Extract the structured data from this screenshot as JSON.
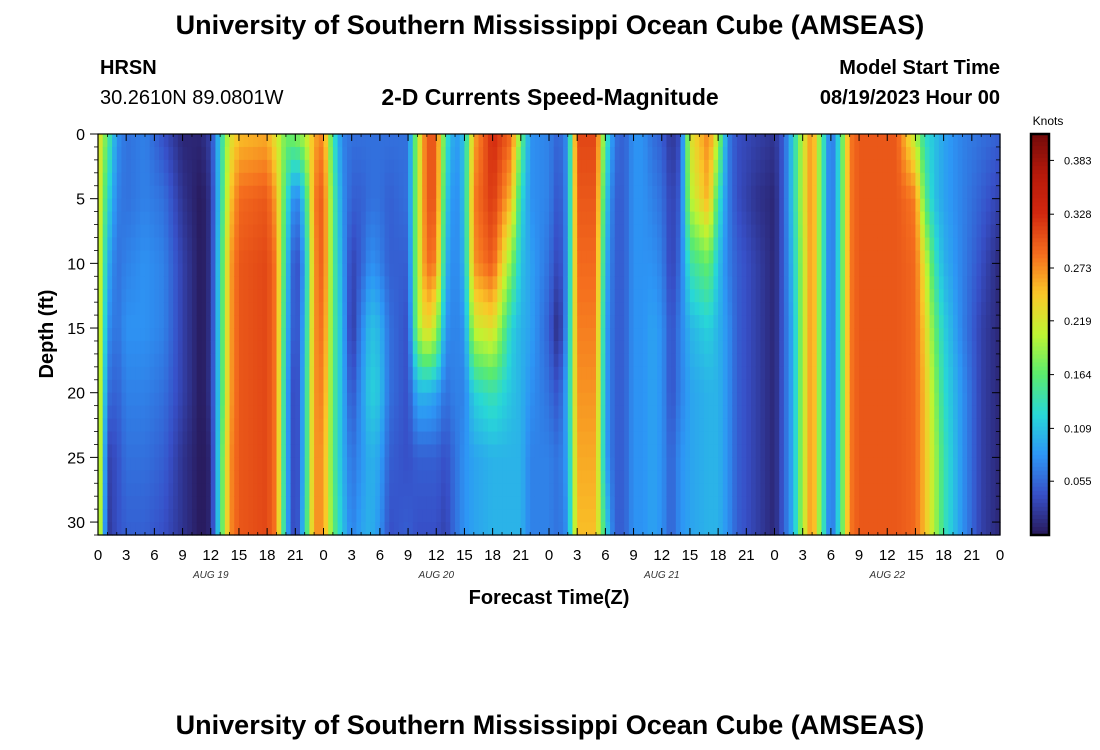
{
  "header": {
    "title": "University of Southern Mississippi Ocean Cube (AMSEAS)",
    "station_name": "HRSN",
    "station_coords": "30.2610N  89.0801W",
    "plot_title": "2-D Currents Speed-Magnitude",
    "model_start_label": "Model Start Time",
    "model_start_value": "08/19/2023 Hour 00"
  },
  "footer": {
    "title": "University of Southern Mississippi Ocean Cube (AMSEAS)"
  },
  "chart_data": {
    "type": "heatmap",
    "title": "2-D Currents Speed-Magnitude",
    "xlabel": "Forecast Time(Z)",
    "ylabel": "Depth (ft)",
    "x_range_hours": [
      0,
      96
    ],
    "x_ticks_hours": [
      0,
      3,
      6,
      9,
      12,
      15,
      18,
      21,
      24,
      27,
      30,
      33,
      36,
      39,
      42,
      45,
      48,
      51,
      54,
      57,
      60,
      63,
      66,
      69,
      72,
      75,
      78,
      81,
      84,
      87,
      90,
      93,
      96
    ],
    "x_tick_labels": [
      "0",
      "3",
      "6",
      "9",
      "12",
      "15",
      "18",
      "21",
      "0",
      "3",
      "6",
      "9",
      "12",
      "15",
      "18",
      "21",
      "0",
      "3",
      "6",
      "9",
      "12",
      "15",
      "18",
      "21",
      "0",
      "3",
      "6",
      "9",
      "12",
      "15",
      "18",
      "21",
      "0"
    ],
    "date_labels": [
      {
        "label": "AUG 19",
        "hour": 12
      },
      {
        "label": "AUG 20",
        "hour": 36
      },
      {
        "label": "AUG 21",
        "hour": 60
      },
      {
        "label": "AUG 22",
        "hour": 84
      }
    ],
    "y_range_ft": [
      0,
      31
    ],
    "y_ticks": [
      0,
      5,
      10,
      15,
      20,
      25,
      30
    ],
    "y_tick_labels": [
      "0",
      "5",
      "10",
      "15",
      "20",
      "25",
      "30"
    ],
    "colorbar": {
      "unit": "Knots",
      "min": 0,
      "max": 0.41,
      "tick_values": [
        0.383,
        0.328,
        0.273,
        0.219,
        0.164,
        0.109,
        0.055
      ],
      "tick_labels": [
        "0.383",
        "0.328",
        "0.273",
        "0.219",
        "0.164",
        "0.109",
        "0.055"
      ]
    },
    "profile_note": "speed (knots) by forecast hour; surface_to_bottom gives approximate speed at depths 0, 5, 10, 15, 20, 25, 31 ft",
    "profiles": [
      {
        "hour": 0,
        "surface_to_bottom": [
          0.24,
          0.24,
          0.24,
          0.25,
          0.25,
          0.26,
          0.26
        ]
      },
      {
        "hour": 1,
        "surface_to_bottom": [
          0.16,
          0.13,
          0.1,
          0.08,
          0.06,
          0.03,
          0.02
        ]
      },
      {
        "hour": 2,
        "surface_to_bottom": [
          0.08,
          0.07,
          0.06,
          0.06,
          0.05,
          0.04,
          0.04
        ]
      },
      {
        "hour": 3,
        "surface_to_bottom": [
          0.06,
          0.06,
          0.07,
          0.08,
          0.07,
          0.06,
          0.05
        ]
      },
      {
        "hour": 5,
        "surface_to_bottom": [
          0.07,
          0.07,
          0.08,
          0.08,
          0.07,
          0.06,
          0.05
        ]
      },
      {
        "hour": 7,
        "surface_to_bottom": [
          0.04,
          0.06,
          0.07,
          0.07,
          0.06,
          0.05,
          0.04
        ]
      },
      {
        "hour": 9,
        "surface_to_bottom": [
          0.01,
          0.02,
          0.03,
          0.03,
          0.03,
          0.02,
          0.02
        ]
      },
      {
        "hour": 11,
        "surface_to_bottom": [
          0.01,
          0.0,
          0.0,
          0.0,
          0.0,
          0.0,
          0.0
        ]
      },
      {
        "hour": 12,
        "surface_to_bottom": [
          0.03,
          0.02,
          0.02,
          0.02,
          0.02,
          0.01,
          0.01
        ]
      },
      {
        "hour": 13,
        "surface_to_bottom": [
          0.12,
          0.12,
          0.13,
          0.13,
          0.13,
          0.14,
          0.14
        ]
      },
      {
        "hour": 14,
        "surface_to_bottom": [
          0.22,
          0.24,
          0.26,
          0.26,
          0.26,
          0.27,
          0.27
        ]
      },
      {
        "hour": 15,
        "surface_to_bottom": [
          0.25,
          0.29,
          0.3,
          0.3,
          0.3,
          0.3,
          0.3
        ]
      },
      {
        "hour": 18,
        "surface_to_bottom": [
          0.26,
          0.3,
          0.31,
          0.31,
          0.31,
          0.31,
          0.31
        ]
      },
      {
        "hour": 19,
        "surface_to_bottom": [
          0.22,
          0.26,
          0.28,
          0.28,
          0.28,
          0.28,
          0.28
        ]
      },
      {
        "hour": 20,
        "surface_to_bottom": [
          0.17,
          0.14,
          0.12,
          0.11,
          0.1,
          0.1,
          0.1
        ]
      },
      {
        "hour": 21,
        "surface_to_bottom": [
          0.18,
          0.06,
          0.03,
          0.03,
          0.02,
          0.02,
          0.02
        ]
      },
      {
        "hour": 22,
        "surface_to_bottom": [
          0.2,
          0.12,
          0.09,
          0.1,
          0.11,
          0.11,
          0.12
        ]
      },
      {
        "hour": 23,
        "surface_to_bottom": [
          0.26,
          0.28,
          0.27,
          0.27,
          0.27,
          0.27,
          0.27
        ]
      },
      {
        "hour": 24,
        "surface_to_bottom": [
          0.28,
          0.3,
          0.3,
          0.29,
          0.28,
          0.27,
          0.27
        ]
      },
      {
        "hour": 25,
        "surface_to_bottom": [
          0.14,
          0.16,
          0.16,
          0.16,
          0.16,
          0.16,
          0.17
        ]
      },
      {
        "hour": 26,
        "surface_to_bottom": [
          0.07,
          0.08,
          0.09,
          0.1,
          0.1,
          0.1,
          0.11
        ]
      },
      {
        "hour": 27,
        "surface_to_bottom": [
          0.06,
          0.05,
          0.03,
          0.02,
          0.04,
          0.06,
          0.07
        ]
      },
      {
        "hour": 28,
        "surface_to_bottom": [
          0.06,
          0.05,
          0.05,
          0.07,
          0.08,
          0.08,
          0.09
        ]
      },
      {
        "hour": 29,
        "surface_to_bottom": [
          0.06,
          0.06,
          0.08,
          0.11,
          0.12,
          0.1,
          0.1
        ]
      },
      {
        "hour": 30,
        "surface_to_bottom": [
          0.06,
          0.06,
          0.07,
          0.1,
          0.11,
          0.09,
          0.08
        ]
      },
      {
        "hour": 31,
        "surface_to_bottom": [
          0.06,
          0.05,
          0.05,
          0.06,
          0.06,
          0.05,
          0.04
        ]
      },
      {
        "hour": 33,
        "surface_to_bottom": [
          0.06,
          0.06,
          0.05,
          0.04,
          0.04,
          0.04,
          0.05
        ]
      },
      {
        "hour": 34,
        "surface_to_bottom": [
          0.2,
          0.2,
          0.2,
          0.19,
          0.1,
          0.05,
          0.04
        ]
      },
      {
        "hour": 35,
        "surface_to_bottom": [
          0.3,
          0.3,
          0.29,
          0.24,
          0.1,
          0.05,
          0.04
        ]
      },
      {
        "hour": 36,
        "surface_to_bottom": [
          0.3,
          0.3,
          0.28,
          0.2,
          0.09,
          0.05,
          0.04
        ]
      },
      {
        "hour": 37,
        "surface_to_bottom": [
          0.14,
          0.12,
          0.1,
          0.08,
          0.06,
          0.04,
          0.03
        ]
      },
      {
        "hour": 38,
        "surface_to_bottom": [
          0.08,
          0.07,
          0.07,
          0.07,
          0.07,
          0.06,
          0.06
        ]
      },
      {
        "hour": 39,
        "surface_to_bottom": [
          0.11,
          0.11,
          0.1,
          0.08,
          0.07,
          0.08,
          0.08
        ]
      },
      {
        "hour": 40,
        "surface_to_bottom": [
          0.26,
          0.28,
          0.27,
          0.21,
          0.12,
          0.09,
          0.09
        ]
      },
      {
        "hour": 42,
        "surface_to_bottom": [
          0.33,
          0.32,
          0.3,
          0.23,
          0.14,
          0.1,
          0.1
        ]
      },
      {
        "hour": 44,
        "surface_to_bottom": [
          0.29,
          0.25,
          0.18,
          0.12,
          0.11,
          0.1,
          0.1
        ]
      },
      {
        "hour": 45,
        "surface_to_bottom": [
          0.17,
          0.13,
          0.11,
          0.1,
          0.1,
          0.1,
          0.1
        ]
      },
      {
        "hour": 46,
        "surface_to_bottom": [
          0.08,
          0.08,
          0.09,
          0.09,
          0.08,
          0.07,
          0.07
        ]
      },
      {
        "hour": 48,
        "surface_to_bottom": [
          0.07,
          0.07,
          0.06,
          0.05,
          0.06,
          0.07,
          0.07
        ]
      },
      {
        "hour": 49,
        "surface_to_bottom": [
          0.05,
          0.04,
          0.03,
          0.01,
          0.04,
          0.06,
          0.06
        ]
      },
      {
        "hour": 50,
        "surface_to_bottom": [
          0.08,
          0.08,
          0.08,
          0.09,
          0.1,
          0.09,
          0.08
        ]
      },
      {
        "hour": 51,
        "surface_to_bottom": [
          0.31,
          0.3,
          0.29,
          0.28,
          0.27,
          0.26,
          0.25
        ]
      },
      {
        "hour": 53,
        "surface_to_bottom": [
          0.31,
          0.3,
          0.29,
          0.28,
          0.27,
          0.26,
          0.25
        ]
      },
      {
        "hour": 54,
        "surface_to_bottom": [
          0.15,
          0.12,
          0.1,
          0.09,
          0.09,
          0.09,
          0.13
        ]
      },
      {
        "hour": 55,
        "surface_to_bottom": [
          0.06,
          0.05,
          0.05,
          0.05,
          0.05,
          0.05,
          0.05
        ]
      },
      {
        "hour": 56,
        "surface_to_bottom": [
          0.05,
          0.05,
          0.05,
          0.05,
          0.05,
          0.05,
          0.05
        ]
      },
      {
        "hour": 57,
        "surface_to_bottom": [
          0.08,
          0.08,
          0.08,
          0.08,
          0.08,
          0.08,
          0.08
        ]
      },
      {
        "hour": 58,
        "surface_to_bottom": [
          0.08,
          0.08,
          0.08,
          0.08,
          0.08,
          0.08,
          0.08
        ]
      },
      {
        "hour": 59,
        "surface_to_bottom": [
          0.06,
          0.07,
          0.08,
          0.09,
          0.09,
          0.09,
          0.09
        ]
      },
      {
        "hour": 60,
        "surface_to_bottom": [
          0.05,
          0.06,
          0.07,
          0.08,
          0.08,
          0.08,
          0.08
        ]
      },
      {
        "hour": 61,
        "surface_to_bottom": [
          0.02,
          0.03,
          0.03,
          0.04,
          0.04,
          0.05,
          0.05
        ]
      },
      {
        "hour": 62,
        "surface_to_bottom": [
          0.04,
          0.05,
          0.06,
          0.07,
          0.07,
          0.08,
          0.08
        ]
      },
      {
        "hour": 63,
        "surface_to_bottom": [
          0.22,
          0.2,
          0.14,
          0.1,
          0.09,
          0.09,
          0.09
        ]
      },
      {
        "hour": 65,
        "surface_to_bottom": [
          0.28,
          0.26,
          0.17,
          0.12,
          0.1,
          0.1,
          0.1
        ]
      },
      {
        "hour": 66,
        "surface_to_bottom": [
          0.2,
          0.14,
          0.11,
          0.1,
          0.1,
          0.1,
          0.1
        ]
      },
      {
        "hour": 67,
        "surface_to_bottom": [
          0.07,
          0.07,
          0.07,
          0.08,
          0.08,
          0.08,
          0.08
        ]
      },
      {
        "hour": 68,
        "surface_to_bottom": [
          0.04,
          0.04,
          0.05,
          0.05,
          0.05,
          0.05,
          0.05
        ]
      },
      {
        "hour": 70,
        "surface_to_bottom": [
          0.03,
          0.02,
          0.03,
          0.03,
          0.03,
          0.03,
          0.03
        ]
      },
      {
        "hour": 72,
        "surface_to_bottom": [
          0.02,
          0.01,
          0.01,
          0.01,
          0.01,
          0.01,
          0.01
        ]
      },
      {
        "hour": 73,
        "surface_to_bottom": [
          0.05,
          0.05,
          0.05,
          0.05,
          0.05,
          0.05,
          0.05
        ]
      },
      {
        "hour": 74,
        "surface_to_bottom": [
          0.12,
          0.12,
          0.11,
          0.1,
          0.1,
          0.1,
          0.1
        ]
      },
      {
        "hour": 75,
        "surface_to_bottom": [
          0.21,
          0.21,
          0.2,
          0.2,
          0.2,
          0.2,
          0.2
        ]
      },
      {
        "hour": 76,
        "surface_to_bottom": [
          0.28,
          0.28,
          0.28,
          0.28,
          0.28,
          0.28,
          0.28
        ]
      },
      {
        "hour": 77,
        "surface_to_bottom": [
          0.16,
          0.16,
          0.16,
          0.16,
          0.16,
          0.16,
          0.16
        ]
      },
      {
        "hour": 78,
        "surface_to_bottom": [
          0.05,
          0.05,
          0.05,
          0.05,
          0.05,
          0.05,
          0.05
        ]
      },
      {
        "hour": 79,
        "surface_to_bottom": [
          0.14,
          0.14,
          0.14,
          0.14,
          0.14,
          0.14,
          0.14
        ]
      },
      {
        "hour": 80,
        "surface_to_bottom": [
          0.28,
          0.28,
          0.28,
          0.28,
          0.28,
          0.28,
          0.28
        ]
      },
      {
        "hour": 81,
        "surface_to_bottom": [
          0.3,
          0.3,
          0.3,
          0.3,
          0.3,
          0.3,
          0.3
        ]
      },
      {
        "hour": 85,
        "surface_to_bottom": [
          0.3,
          0.3,
          0.3,
          0.3,
          0.3,
          0.3,
          0.3
        ]
      },
      {
        "hour": 87,
        "surface_to_bottom": [
          0.2,
          0.28,
          0.29,
          0.29,
          0.29,
          0.29,
          0.29
        ]
      },
      {
        "hour": 88,
        "surface_to_bottom": [
          0.13,
          0.16,
          0.22,
          0.24,
          0.25,
          0.25,
          0.25
        ]
      },
      {
        "hour": 89,
        "surface_to_bottom": [
          0.11,
          0.11,
          0.14,
          0.17,
          0.19,
          0.2,
          0.2
        ]
      },
      {
        "hour": 90,
        "surface_to_bottom": [
          0.09,
          0.09,
          0.1,
          0.12,
          0.13,
          0.14,
          0.14
        ]
      },
      {
        "hour": 92,
        "surface_to_bottom": [
          0.07,
          0.07,
          0.07,
          0.07,
          0.08,
          0.08,
          0.08
        ]
      },
      {
        "hour": 94,
        "surface_to_bottom": [
          0.06,
          0.05,
          0.04,
          0.03,
          0.03,
          0.03,
          0.03
        ]
      },
      {
        "hour": 96,
        "surface_to_bottom": [
          0.05,
          0.03,
          0.01,
          0.01,
          0.01,
          0.01,
          0.01
        ]
      }
    ]
  }
}
